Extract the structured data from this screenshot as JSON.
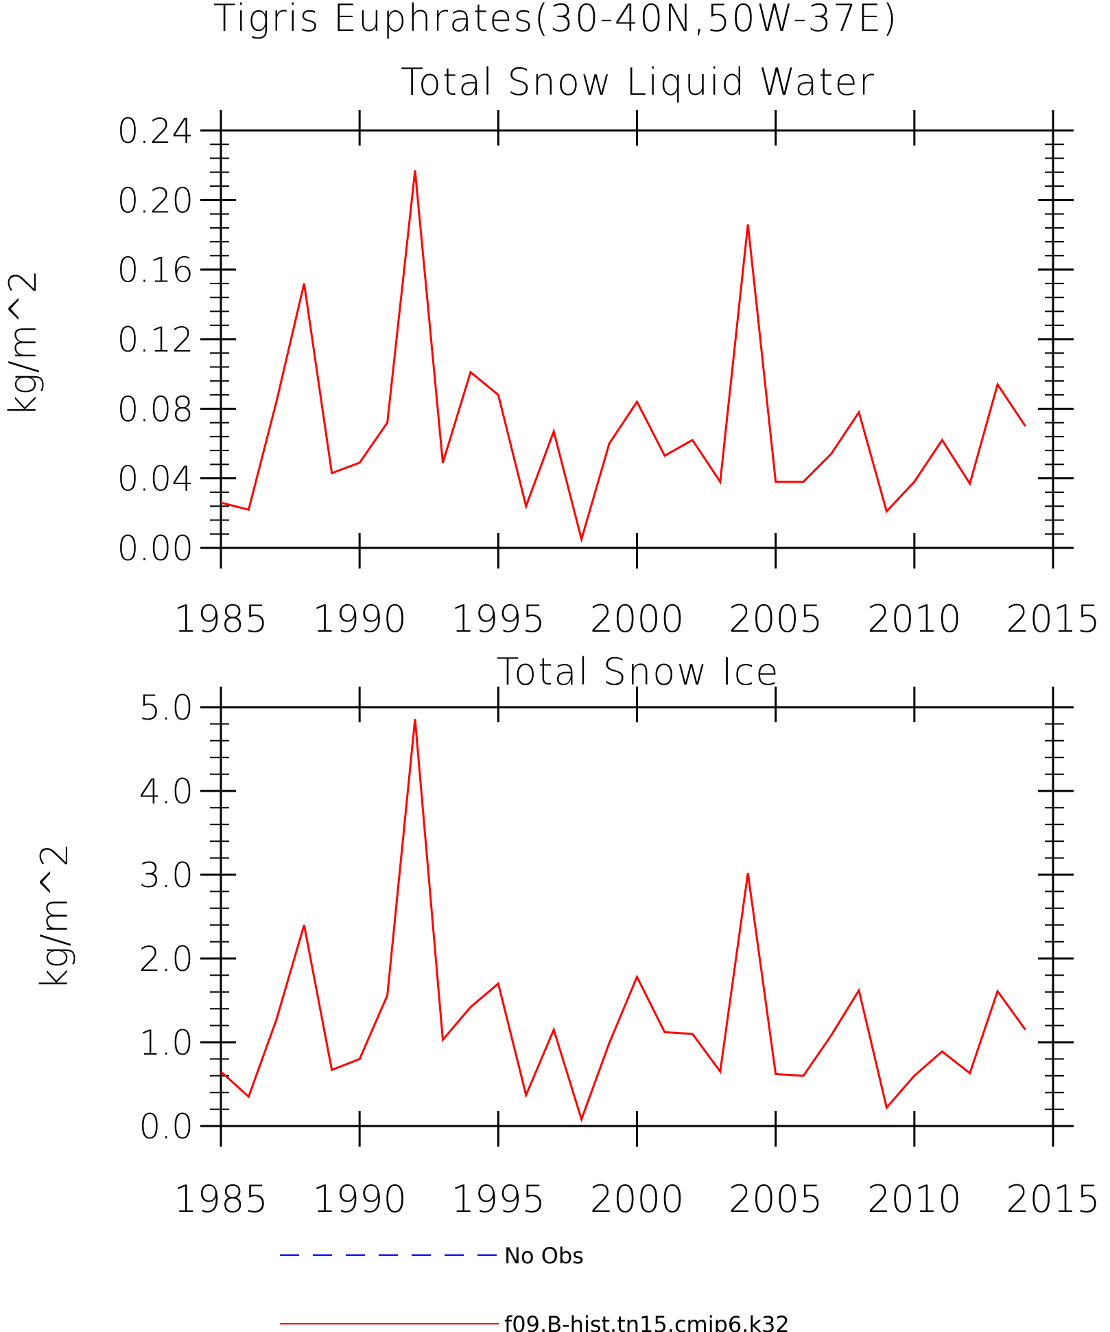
{
  "figure_title": "Tigris Euphrates(30-40N,50W-37E)",
  "colors": {
    "model": "#ff0000",
    "obs": "#0000ff",
    "axis": "#000000"
  },
  "legend": {
    "items": [
      {
        "label": "No Obs",
        "color": "#0000ff",
        "style": "dashed"
      },
      {
        "label": "f09.B-hist.tn15.cmip6.k32",
        "color": "#ff0000",
        "style": "solid"
      }
    ]
  },
  "chart_data": [
    {
      "type": "line",
      "title": "Total Snow Liquid Water",
      "xlabel": "",
      "ylabel": "kg/m^2",
      "xlim": [
        1985,
        2015
      ],
      "ylim": [
        0.0,
        0.24
      ],
      "xticks": [
        "1985",
        "1990",
        "1995",
        "2000",
        "2005",
        "2010",
        "2015"
      ],
      "yticks": [
        "0.00",
        "0.04",
        "0.08",
        "0.12",
        "0.16",
        "0.20",
        "0.24"
      ],
      "x": [
        1985,
        1986,
        1987,
        1988,
        1989,
        1990,
        1991,
        1992,
        1993,
        1994,
        1995,
        1996,
        1997,
        1998,
        1999,
        2000,
        2001,
        2002,
        2003,
        2004,
        2005,
        2006,
        2007,
        2008,
        2009,
        2010,
        2011,
        2012,
        2013,
        2014
      ],
      "series": [
        {
          "name": "f09.B-hist.tn15.cmip6.k32",
          "values": [
            0.026,
            0.022,
            0.084,
            0.152,
            0.043,
            0.049,
            0.072,
            0.217,
            0.049,
            0.101,
            0.088,
            0.024,
            0.067,
            0.005,
            0.06,
            0.084,
            0.053,
            0.062,
            0.038,
            0.186,
            0.038,
            0.038,
            0.054,
            0.078,
            0.021,
            0.038,
            0.062,
            0.037,
            0.094,
            0.07
          ]
        }
      ],
      "grid": false
    },
    {
      "type": "line",
      "title": "Total Snow Ice",
      "xlabel": "",
      "ylabel": "kg/m^2",
      "xlim": [
        1985,
        2015
      ],
      "ylim": [
        0.0,
        5.0
      ],
      "xticks": [
        "1985",
        "1990",
        "1995",
        "2000",
        "2005",
        "2010",
        "2015"
      ],
      "yticks": [
        "0.0",
        "1.0",
        "2.0",
        "3.0",
        "4.0",
        "5.0"
      ],
      "x": [
        1985,
        1986,
        1987,
        1988,
        1989,
        1990,
        1991,
        1992,
        1993,
        1994,
        1995,
        1996,
        1997,
        1998,
        1999,
        2000,
        2001,
        2002,
        2003,
        2004,
        2005,
        2006,
        2007,
        2008,
        2009,
        2010,
        2011,
        2012,
        2013,
        2014
      ],
      "series": [
        {
          "name": "f09.B-hist.tn15.cmip6.k32",
          "values": [
            0.65,
            0.35,
            1.27,
            2.4,
            0.67,
            0.8,
            1.56,
            4.86,
            1.03,
            1.42,
            1.7,
            0.37,
            1.15,
            0.08,
            0.99,
            1.78,
            1.12,
            1.1,
            0.65,
            3.02,
            0.62,
            0.6,
            1.08,
            1.62,
            0.22,
            0.6,
            0.89,
            0.63,
            1.61,
            1.15
          ]
        }
      ],
      "grid": false
    }
  ]
}
